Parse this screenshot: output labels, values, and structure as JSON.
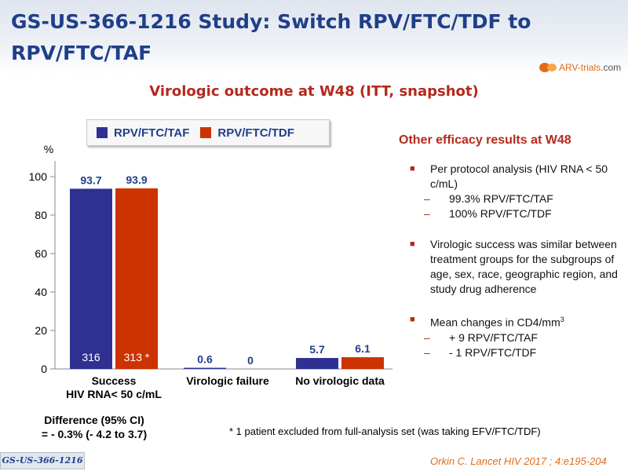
{
  "slide": {
    "title": "GS-US-366-1216 Study: Switch RPV/FTC/TDF to RPV/FTC/TAF",
    "logo": {
      "text_brand": "ARV-trials",
      "text_suffix": ".com",
      "icon": "arv-trials-logo-icon"
    },
    "subtitle": "Virologic outcome at W48 (ITT, snapshot)",
    "tag": "GS-US-366-1216",
    "citation": "Orkin C. Lancet HIV 2017 ; 4:e195-204",
    "footnote": "* 1 patient excluded from full-analysis set (was taking EFV/FTC/TDF)",
    "difference_line1": "Difference (95% CI)",
    "difference_line2": "= - 0.3% (- 4.2 to 3.7)"
  },
  "right_panel": {
    "heading": "Other efficacy results at W48",
    "bullet1": "Per protocol analysis (HIV RNA < 50 c/mL)",
    "bullet1_sub1": "99.3% RPV/FTC/TAF",
    "bullet1_sub2": "100% RPV/FTC/TDF",
    "bullet2": "Virologic success was similar between treatment groups for the subgroups of age, sex, race, geographic region, and study drug adherence",
    "bullet3": "Mean changes in CD4/mm",
    "bullet3_sup": "3",
    "bullet3_sub1": "+ 9 RPV/FTC/TAF",
    "bullet3_sub2": "- 1 RPV/FTC/TDF"
  },
  "chart_data": {
    "type": "bar",
    "ylabel": "%",
    "ylim": [
      0,
      100
    ],
    "yticks": [
      0,
      20,
      40,
      60,
      80,
      100
    ],
    "grid": false,
    "legend_placement": "top",
    "categories": [
      "Success\nHIV RNA< 50 c/mL",
      "Virologic failure",
      "No virologic data"
    ],
    "series": [
      {
        "name": "RPV/FTC/TAF",
        "color": "#2e3192",
        "values": [
          93.7,
          0.6,
          5.7
        ],
        "labels": [
          "93.7",
          "0.6",
          "5.7"
        ]
      },
      {
        "name": "RPV/FTC/TDF",
        "color": "#cc3300",
        "values": [
          93.9,
          0,
          6.1
        ],
        "labels": [
          "93.9",
          "0",
          "6.1"
        ]
      }
    ],
    "bar_annotations": [
      [
        "316",
        ""
      ],
      [
        "313 *",
        ""
      ]
    ]
  }
}
